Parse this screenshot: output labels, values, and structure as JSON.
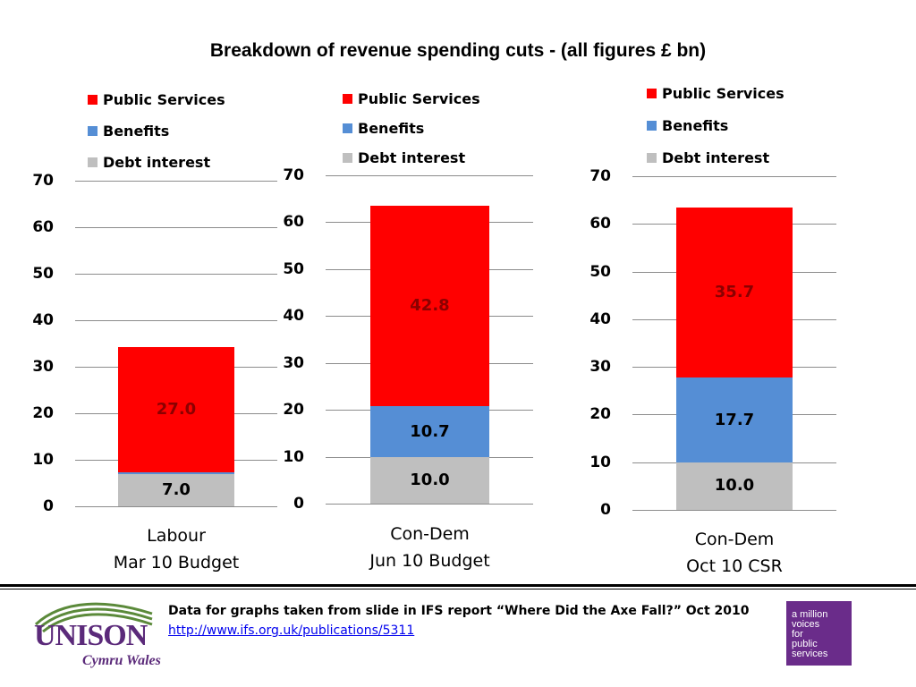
{
  "title": "Breakdown of revenue spending cuts - (all figures £ bn)",
  "colors": {
    "public_services": "#ff0000",
    "benefits": "#558ed5",
    "debt_interest": "#bfbfbf"
  },
  "chart_data": [
    {
      "type": "bar",
      "stacked": true,
      "category": [
        "Labour",
        "Mar 10 Budget"
      ],
      "ylim": [
        0,
        70
      ],
      "yticks": [
        "0",
        "10",
        "20",
        "30",
        "40",
        "50",
        "60",
        "70"
      ],
      "legend": [
        "Public Services",
        "Benefits",
        "Debt interest"
      ],
      "series": [
        {
          "name": "Debt interest",
          "value": 7.0,
          "label": "7.0"
        },
        {
          "name": "Benefits",
          "value": 0.3,
          "label": ""
        },
        {
          "name": "Public Services",
          "value": 27.0,
          "label": "27.0"
        }
      ]
    },
    {
      "type": "bar",
      "stacked": true,
      "category": [
        "Con-Dem",
        "Jun 10 Budget"
      ],
      "ylim": [
        0,
        70
      ],
      "yticks": [
        "0",
        "10",
        "20",
        "30",
        "40",
        "50",
        "60",
        "70"
      ],
      "legend": [
        "Public Services",
        "Benefits",
        "Debt interest"
      ],
      "series": [
        {
          "name": "Debt interest",
          "value": 10.0,
          "label": "10.0"
        },
        {
          "name": "Benefits",
          "value": 10.7,
          "label": "10.7"
        },
        {
          "name": "Public Services",
          "value": 42.8,
          "label": "42.8"
        }
      ]
    },
    {
      "type": "bar",
      "stacked": true,
      "category": [
        "Con-Dem",
        "Oct 10 CSR"
      ],
      "ylim": [
        0,
        70
      ],
      "yticks": [
        "0",
        "10",
        "20",
        "30",
        "40",
        "50",
        "60",
        "70"
      ],
      "legend": [
        "Public Services",
        "Benefits",
        "Debt interest"
      ],
      "series": [
        {
          "name": "Debt interest",
          "value": 10.0,
          "label": "10.0"
        },
        {
          "name": "Benefits",
          "value": 17.7,
          "label": "17.7"
        },
        {
          "name": "Public Services",
          "value": 35.7,
          "label": "35.7"
        }
      ]
    }
  ],
  "footer": {
    "source": "Data for graphs taken from slide in IFS report “Where Did the Axe Fall?” Oct 2010",
    "link": "http://www.ifs.org.uk/publications/5311",
    "logo_left_text": "UNISON",
    "logo_left_sub": "Cymru Wales",
    "logo_right_lines": [
      "a million",
      "voices",
      "for",
      "public",
      "services"
    ]
  }
}
